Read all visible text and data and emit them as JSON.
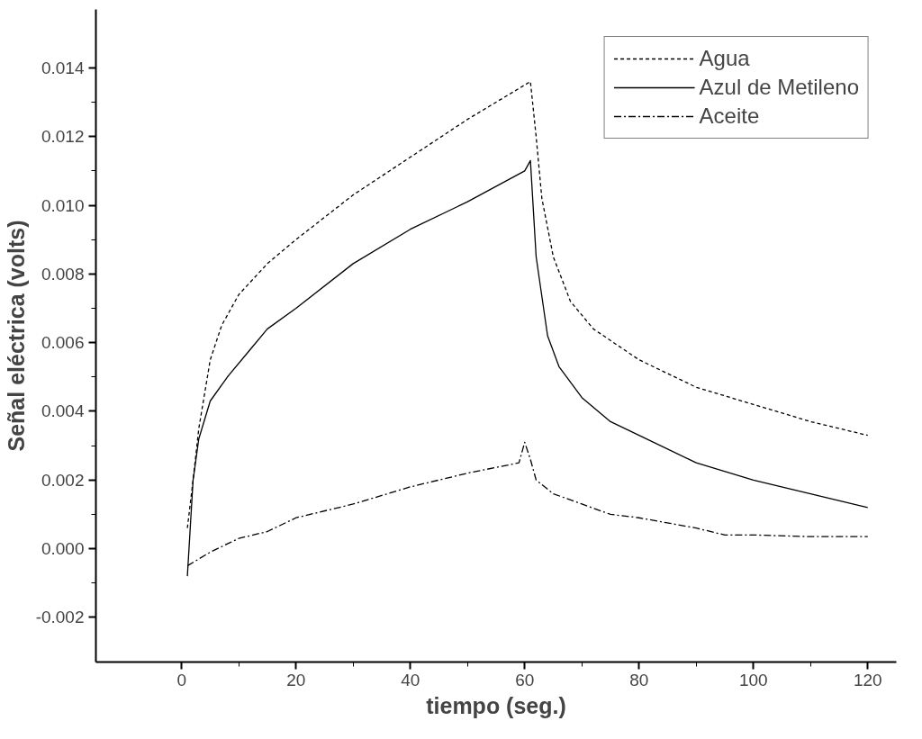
{
  "chart_data": {
    "type": "line",
    "xlabel": "tiempo (seg.)",
    "ylabel": "Señal eléctrica (volts)",
    "xlim": [
      -15,
      125
    ],
    "xticks": [
      0,
      20,
      40,
      60,
      80,
      100,
      120
    ],
    "ylim": [
      -0.0033,
      0.0157
    ],
    "yticks": [
      {
        "value": -0.002,
        "label": "-0.002"
      },
      {
        "value": 0,
        "label": "0.000"
      },
      {
        "value": 0.002,
        "label": "0.002"
      },
      {
        "value": 0.004,
        "label": "0.004"
      },
      {
        "value": 0.006,
        "label": "0.006"
      },
      {
        "value": 0.008,
        "label": "0.008"
      },
      {
        "value": 0.01,
        "label": "0.010"
      },
      {
        "value": 0.012,
        "label": "0.012"
      },
      {
        "value": 0.014,
        "label": "0.014"
      }
    ],
    "grid": false,
    "legend": "top right",
    "series": [
      {
        "name": "Agua",
        "color": "#000000",
        "line_style": "dashed",
        "x": [
          1,
          2,
          3,
          5,
          7,
          10,
          15,
          20,
          30,
          40,
          50,
          60,
          61,
          62,
          63,
          65,
          68,
          72,
          80,
          90,
          100,
          110,
          120
        ],
        "values": [
          0.0006,
          0.002,
          0.0035,
          0.0055,
          0.0065,
          0.0074,
          0.0083,
          0.009,
          0.0103,
          0.0114,
          0.0125,
          0.0135,
          0.0136,
          0.012,
          0.0102,
          0.0085,
          0.0072,
          0.0064,
          0.0055,
          0.0047,
          0.0042,
          0.0037,
          0.0033
        ]
      },
      {
        "name": "Azul de Metileno",
        "color": "#000000",
        "line_style": "solid",
        "x": [
          1,
          2,
          3,
          5,
          8,
          12,
          15,
          20,
          30,
          40,
          50,
          60,
          61,
          62,
          64,
          66,
          70,
          75,
          80,
          90,
          100,
          110,
          120
        ],
        "values": [
          -0.0008,
          0.002,
          0.0032,
          0.0043,
          0.005,
          0.0058,
          0.0064,
          0.007,
          0.0083,
          0.0093,
          0.0101,
          0.011,
          0.0113,
          0.0085,
          0.0062,
          0.0053,
          0.0044,
          0.0037,
          0.0033,
          0.0025,
          0.002,
          0.0016,
          0.0012
        ]
      },
      {
        "name": "Aceite",
        "color": "#000000",
        "line_style": "dashdot",
        "x": [
          1,
          5,
          10,
          15,
          20,
          30,
          40,
          50,
          59,
          60,
          61,
          62,
          65,
          70,
          75,
          80,
          90,
          95,
          100,
          110,
          120
        ],
        "values": [
          -0.0005,
          -0.0001,
          0.0003,
          0.0005,
          0.0009,
          0.0013,
          0.0018,
          0.0022,
          0.0025,
          0.0031,
          0.0026,
          0.002,
          0.0016,
          0.0013,
          0.001,
          0.0009,
          0.0006,
          0.0004,
          0.0004,
          0.00035,
          0.00035
        ]
      }
    ]
  }
}
